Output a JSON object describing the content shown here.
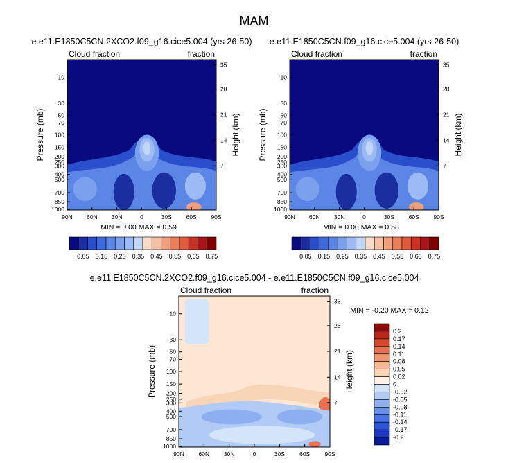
{
  "season_title": "MAM",
  "colors": {
    "seq_scale": [
      "#0a0a80",
      "#1b2ea0",
      "#2a4fcc",
      "#3f6bde",
      "#5b86e6",
      "#7aa0ee",
      "#9cbaf4",
      "#c2d6f8",
      "#f8dcc8",
      "#f4bfa2",
      "#f0a07e",
      "#ea7f5c",
      "#e05a3c",
      "#cc3222",
      "#a8141a",
      "#800000"
    ],
    "div_scale": [
      "#0a1a9a",
      "#1c38c4",
      "#2f55dc",
      "#4872e6",
      "#6990ee",
      "#8daff2",
      "#b2cbf6",
      "#d4e4f9",
      "#fdf0e4",
      "#f9d5b8",
      "#f5b693",
      "#f0946e",
      "#e8704d",
      "#d44a2e",
      "#b8281a",
      "#8c0a0a"
    ],
    "background_seq": "#0a0a80",
    "background_diff": "#fde6d4"
  },
  "chart_data": [
    {
      "type": "heatmap",
      "title": "e.e11.E1850C5CN.2XCO2.f09_g16.cice5.004 (yrs 26-50)",
      "left_label": "Cloud fraction",
      "right_label": "fraction",
      "ylabel": "Pressure (mb)",
      "ylabel_right": "Height (km)",
      "x_ticks": [
        "90N",
        "60N",
        "30N",
        "0",
        "30S",
        "60S",
        "90S"
      ],
      "y_ticks": [
        "10",
        "30",
        "50",
        "70",
        "100",
        "150",
        "200",
        "250",
        "300",
        "400",
        "500",
        "700",
        "850",
        "1000"
      ],
      "y_right_ticks": [
        "35",
        "28",
        "21",
        "14",
        "7"
      ],
      "stats_label": "MIN =  0.00  MAX =   0.59",
      "min": 0.0,
      "max": 0.59,
      "colorbar_labels": [
        "0.05",
        "0.15",
        "0.25",
        "0.35",
        "0.45",
        "0.55",
        "0.65",
        "0.75"
      ]
    },
    {
      "type": "heatmap",
      "title": "e.e11.E1850C5CN.f09_g16.cice5.004 (yrs 26-50)",
      "left_label": "Cloud fraction",
      "right_label": "fraction",
      "ylabel": "Pressure (mb)",
      "ylabel_right": "Height (km)",
      "x_ticks": [
        "90N",
        "60N",
        "30N",
        "0",
        "30S",
        "60S",
        "90S"
      ],
      "y_ticks": [
        "10",
        "30",
        "50",
        "70",
        "100",
        "150",
        "200",
        "250",
        "300",
        "400",
        "500",
        "700",
        "850",
        "1000"
      ],
      "y_right_ticks": [
        "35",
        "28",
        "21",
        "14",
        "7"
      ],
      "stats_label": "MIN =  0.00  MAX =   0.58",
      "min": 0.0,
      "max": 0.58,
      "colorbar_labels": [
        "0.05",
        "0.15",
        "0.25",
        "0.35",
        "0.45",
        "0.55",
        "0.65",
        "0.75"
      ]
    },
    {
      "type": "heatmap",
      "title": "e.e11.E1850C5CN.2XCO2.f09_g16.cice5.004 - e.e11.E1850C5CN.f09_g16.cice5.004",
      "left_label": "Cloud fraction",
      "right_label": "fraction",
      "ylabel": "Pressure (mb)",
      "ylabel_right": "Height (km)",
      "x_ticks": [
        "90N",
        "60N",
        "30N",
        "0",
        "30S",
        "60S",
        "90S"
      ],
      "y_ticks": [
        "10",
        "30",
        "50",
        "70",
        "100",
        "150",
        "200",
        "250",
        "300",
        "400",
        "500",
        "700",
        "850",
        "1000"
      ],
      "y_right_ticks": [
        "35",
        "28",
        "21",
        "14",
        "7"
      ],
      "stats_label": "MIN = -0.20  MAX =   0.12",
      "min": -0.2,
      "max": 0.12,
      "colorbar_labels": [
        "0.2",
        "0.17",
        "0.14",
        "0.11",
        "0.08",
        "0.05",
        "0.02",
        "0",
        "-0.02",
        "-0.05",
        "-0.08",
        "-0.11",
        "-0.14",
        "-0.17",
        "-0.2"
      ]
    }
  ]
}
